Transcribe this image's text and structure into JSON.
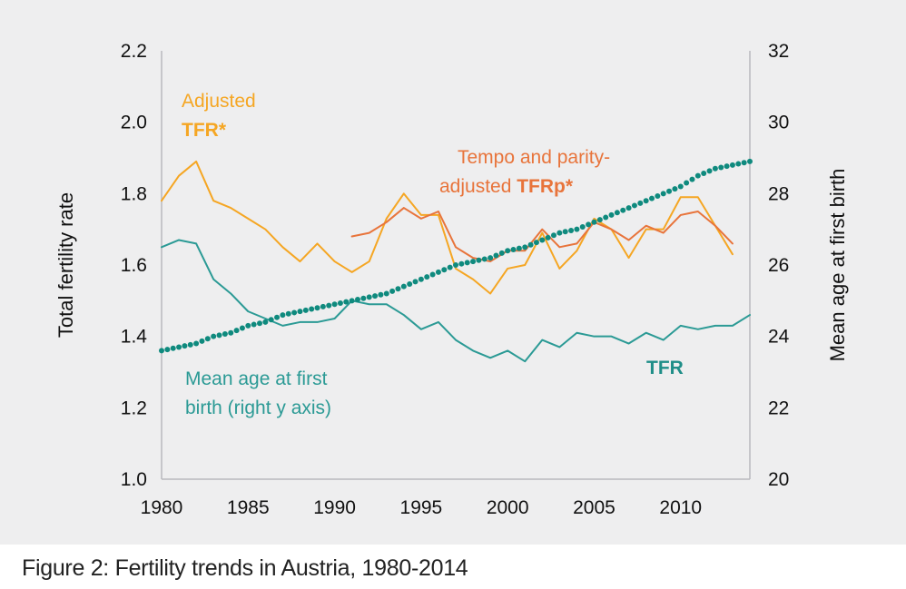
{
  "chart_data": {
    "type": "line",
    "caption": "Figure 2: Fertility trends in Austria, 1980-2014",
    "xlabel": "",
    "ylabel": "Total fertility rate",
    "y2label": "Mean age at first birth",
    "xlim": [
      1980,
      2014
    ],
    "ylim": [
      1.0,
      2.2
    ],
    "y2lim": [
      20,
      32
    ],
    "x_ticks": [
      "1980",
      "1985",
      "1990",
      "1995",
      "2000",
      "2005",
      "2010"
    ],
    "y_ticks": [
      "1.0",
      "1.2",
      "1.4",
      "1.6",
      "1.8",
      "2.0",
      "2.2"
    ],
    "y2_ticks": [
      "20",
      "22",
      "24",
      "26",
      "28",
      "30",
      "32"
    ],
    "colors": {
      "tfr": "#2b9a95",
      "adjusted": "#f5a623",
      "tfrp": "#e8743b",
      "mean_age": "#0f8a7e"
    },
    "annotations": {
      "adjusted_line1": "Adjusted",
      "adjusted_line2": "TFR*",
      "tfrp_line1": "Tempo and parity-",
      "tfrp_line2a": "adjusted ",
      "tfrp_line2b": "TFRp*",
      "mean_age_line1": "Mean age at first",
      "mean_age_line2": "birth (right y axis)",
      "tfr_label": "TFR"
    },
    "series": [
      {
        "name": "TFR",
        "axis": "left",
        "x": [
          1980,
          1981,
          1982,
          1983,
          1984,
          1985,
          1986,
          1987,
          1988,
          1989,
          1990,
          1991,
          1992,
          1993,
          1994,
          1995,
          1996,
          1997,
          1998,
          1999,
          2000,
          2001,
          2002,
          2003,
          2004,
          2005,
          2006,
          2007,
          2008,
          2009,
          2010,
          2011,
          2012,
          2013,
          2014
        ],
        "values": [
          1.65,
          1.67,
          1.66,
          1.56,
          1.52,
          1.47,
          1.45,
          1.43,
          1.44,
          1.44,
          1.45,
          1.5,
          1.49,
          1.49,
          1.46,
          1.42,
          1.44,
          1.39,
          1.36,
          1.34,
          1.36,
          1.33,
          1.39,
          1.37,
          1.41,
          1.4,
          1.4,
          1.38,
          1.41,
          1.39,
          1.43,
          1.42,
          1.43,
          1.43,
          1.46
        ]
      },
      {
        "name": "Adjusted TFR*",
        "axis": "left",
        "x": [
          1980,
          1981,
          1982,
          1983,
          1984,
          1985,
          1986,
          1987,
          1988,
          1989,
          1990,
          1991,
          1992,
          1993,
          1994,
          1995,
          1996,
          1997,
          1998,
          1999,
          2000,
          2001,
          2002,
          2003,
          2004,
          2005,
          2006,
          2007,
          2008,
          2009,
          2010,
          2011,
          2012,
          2013
        ],
        "values": [
          1.78,
          1.85,
          1.89,
          1.78,
          1.76,
          1.73,
          1.7,
          1.65,
          1.61,
          1.66,
          1.61,
          1.58,
          1.61,
          1.73,
          1.8,
          1.74,
          1.74,
          1.59,
          1.56,
          1.52,
          1.59,
          1.6,
          1.69,
          1.59,
          1.64,
          1.73,
          1.7,
          1.62,
          1.7,
          1.7,
          1.79,
          1.79,
          1.71,
          1.63
        ]
      },
      {
        "name": "Tempo and parity-adjusted TFRp*",
        "axis": "left",
        "x": [
          1991,
          1992,
          1993,
          1994,
          1995,
          1996,
          1997,
          1998,
          1999,
          2000,
          2001,
          2002,
          2003,
          2004,
          2005,
          2006,
          2007,
          2008,
          2009,
          2010,
          2011,
          2012,
          2013
        ],
        "values": [
          1.68,
          1.69,
          1.72,
          1.76,
          1.73,
          1.75,
          1.65,
          1.62,
          1.61,
          1.64,
          1.64,
          1.7,
          1.65,
          1.66,
          1.72,
          1.7,
          1.67,
          1.71,
          1.69,
          1.74,
          1.75,
          1.71,
          1.66
        ]
      },
      {
        "name": "Mean age at first birth",
        "axis": "right",
        "style": "dotted",
        "x": [
          1980,
          1981,
          1982,
          1983,
          1984,
          1985,
          1986,
          1987,
          1988,
          1989,
          1990,
          1991,
          1992,
          1993,
          1994,
          1995,
          1996,
          1997,
          1998,
          1999,
          2000,
          2001,
          2002,
          2003,
          2004,
          2005,
          2006,
          2007,
          2008,
          2009,
          2010,
          2011,
          2012,
          2013,
          2014
        ],
        "values": [
          23.6,
          23.7,
          23.8,
          24.0,
          24.1,
          24.3,
          24.4,
          24.6,
          24.7,
          24.8,
          24.9,
          25.0,
          25.1,
          25.2,
          25.4,
          25.6,
          25.8,
          26.0,
          26.1,
          26.2,
          26.4,
          26.5,
          26.7,
          26.9,
          27.0,
          27.2,
          27.4,
          27.6,
          27.8,
          28.0,
          28.2,
          28.5,
          28.7,
          28.8,
          28.9
        ]
      }
    ]
  }
}
